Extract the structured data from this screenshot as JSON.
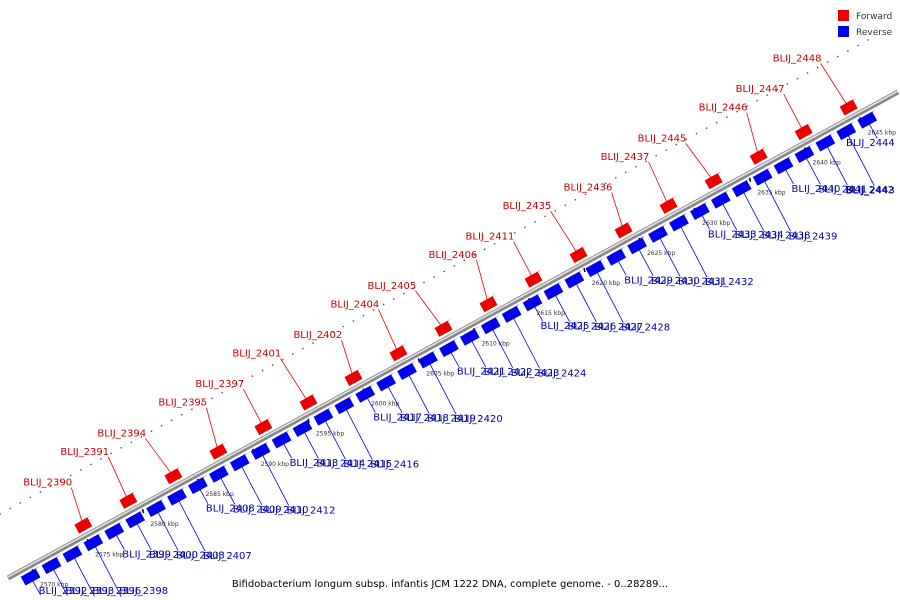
{
  "legend": {
    "forward_label": "Forward",
    "reverse_label": "Reverse",
    "forward_color": "#ee0000",
    "reverse_color": "#0000ee"
  },
  "caption": "Bifidobacterium longum subsp. infantis JCM 1222 DNA, complete genome. - 0..28289...",
  "scale_ticks": [
    "2570 kbp",
    "2575 kbp",
    "2580 kbp",
    "2585 kbp",
    "2590 kbp",
    "2595 kbp",
    "2600 kbp",
    "2605 kbp",
    "2610 kbp",
    "2615 kbp",
    "2620 kbp",
    "2625 kbp",
    "2630 kbp",
    "2635 kbp",
    "2640 kbp",
    "2645 kbp"
  ],
  "forward_genes": [
    "BLIJ_2390",
    "BLIJ_2391",
    "BLIJ_2394",
    "BLIJ_2395",
    "BLIJ_2397",
    "BLIJ_2401",
    "BLIJ_2402",
    "BLIJ_2404",
    "BLIJ_2405",
    "BLIJ_2406",
    "BLIJ_2411",
    "BLIJ_2435",
    "BLIJ_2436",
    "BLIJ_2437",
    "BLIJ_2445",
    "BLIJ_2446",
    "BLIJ_2447",
    "BLIJ_2448"
  ],
  "reverse_genes": [
    "BLIJ_2392",
    "BLIJ_2393",
    "BLIJ_2396",
    "BLIJ_2398",
    "BLIJ_2399",
    "BLIJ_2400",
    "BLIJ_2403",
    "BLIJ_2407",
    "BLIJ_2408",
    "BLIJ_2409",
    "BLIJ_2410",
    "BLIJ_2412",
    "BLIJ_2413",
    "BLIJ_2414",
    "BLIJ_2415",
    "BLIJ_2416",
    "BLIJ_2417",
    "BLIJ_2418",
    "BLIJ_2419",
    "BLIJ_2420",
    "BLIJ_2421",
    "BLIJ_2422",
    "BLIJ_2423",
    "BLIJ_2424",
    "BLIJ_2425",
    "BLIJ_2426",
    "BLIJ_2427",
    "BLIJ_2428",
    "BLIJ_2429",
    "BLIJ_2430",
    "BLIJ_2431",
    "BLIJ_2432",
    "BLIJ_2433",
    "BLIJ_2434",
    "BLIJ_2438",
    "BLIJ_2439",
    "BLIJ_2440",
    "BLIJ_2441",
    "BLIJ_2442",
    "BLIJ_2443",
    "BLIJ_2444"
  ]
}
